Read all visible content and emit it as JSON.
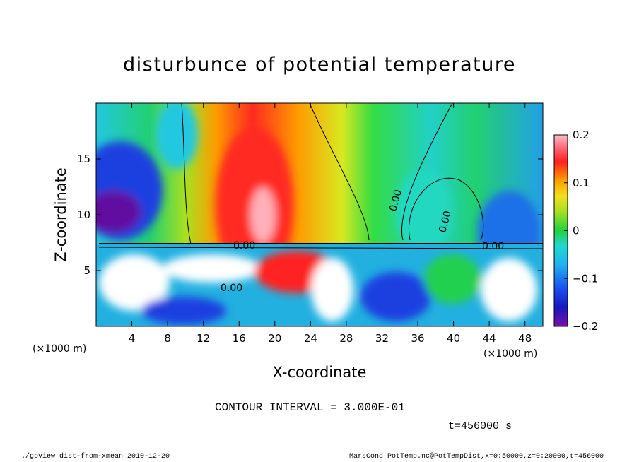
{
  "chart_data": {
    "type": "heatmap",
    "title": "disturbunce of potential temperature",
    "xlabel": "X-coordinate",
    "ylabel": "Z-coordinate",
    "x_unit_label": "(×1000 m)",
    "y_unit_label": "(×1000 m)",
    "xlim": [
      0,
      50
    ],
    "ylim": [
      0,
      20
    ],
    "x_ticks": [
      4,
      8,
      12,
      16,
      20,
      24,
      28,
      32,
      36,
      40,
      44,
      48
    ],
    "x_tick_labels": [
      "4",
      "8",
      "12",
      "16",
      "20",
      "24",
      "28",
      "32",
      "36",
      "40",
      "44",
      "48"
    ],
    "y_ticks": [
      5,
      10,
      15
    ],
    "y_tick_labels": [
      "5",
      "10",
      "15"
    ],
    "colorbar": {
      "min": -0.2,
      "max": 0.2,
      "ticks": [
        0.2,
        0.1,
        0,
        -0.1,
        -0.2
      ],
      "tick_labels": [
        "0.2",
        "0.1",
        "0",
        "−0.1",
        "−0.2"
      ]
    },
    "contour_label": "0.00",
    "colors": {
      "deep_negative": "#7a10a8",
      "negative": "#1a38e0",
      "slight_negative": "#22d0e8",
      "zero": "#22cc44",
      "slight_positive": "#d8e820",
      "positive": "#ff8c00",
      "strong_positive": "#ff2020",
      "max_positive": "#ffb0b8"
    }
  },
  "annotations": {
    "contour_interval": "CONTOUR INTERVAL = 3.000E-01",
    "time": "t=456000 s"
  },
  "footer": {
    "left": "./gpview_dist-from-xmean   2010-12-20",
    "right": "MarsCond_PotTemp.nc@PotTempDist,x=0:50000,z=0:20000,t=456000"
  }
}
